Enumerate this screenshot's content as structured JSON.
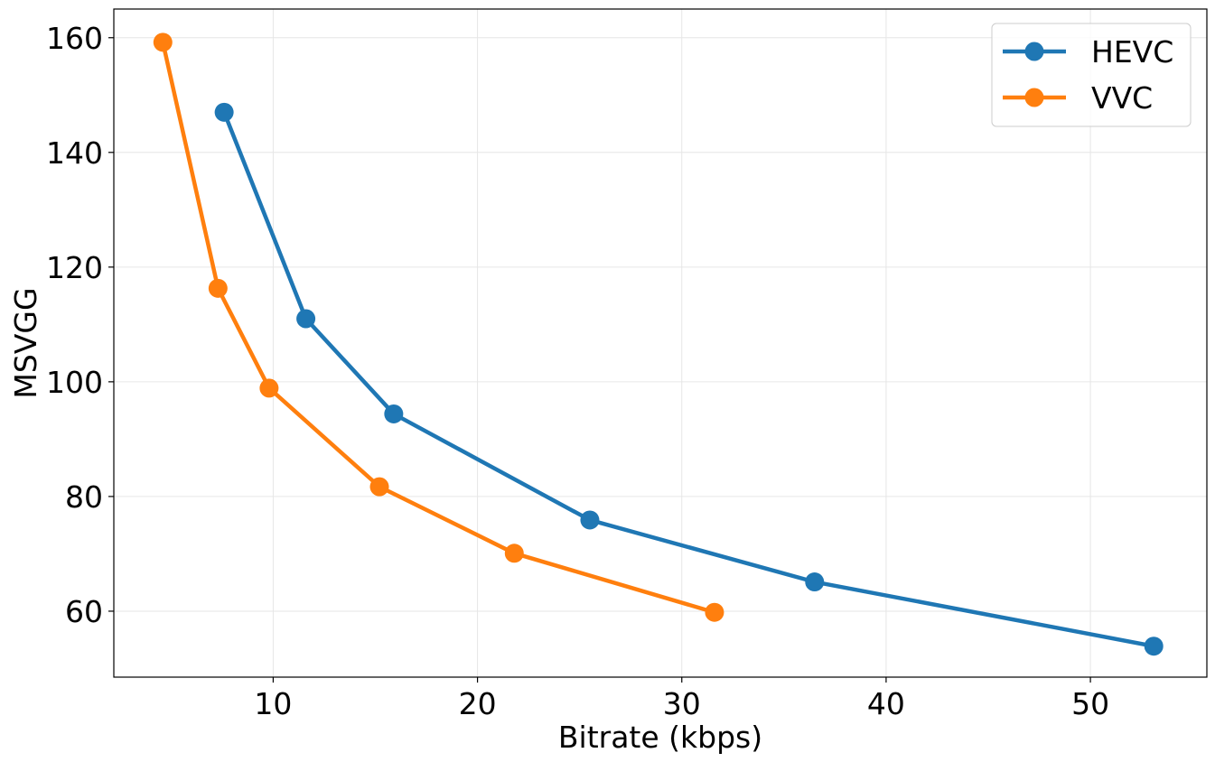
{
  "chart_data": {
    "type": "line",
    "title": "",
    "xlabel": "Bitrate (kbps)",
    "ylabel": "MSVGG",
    "xlim": [
      2.2,
      55.7
    ],
    "ylim": [
      48.5,
      165
    ],
    "xticks": [
      10,
      20,
      30,
      40,
      50
    ],
    "yticks": [
      60,
      80,
      100,
      120,
      140,
      160
    ],
    "grid": true,
    "legend_position": "top-right",
    "series": [
      {
        "name": "HEVC",
        "color": "#1f77b4",
        "x": [
          7.6,
          11.6,
          15.9,
          25.5,
          36.5,
          53.1
        ],
        "y": [
          147.0,
          111.0,
          94.4,
          75.9,
          65.1,
          53.9
        ]
      },
      {
        "name": "VVC",
        "color": "#ff7f0e",
        "x": [
          4.6,
          7.3,
          9.8,
          15.2,
          21.8,
          31.6
        ],
        "y": [
          159.2,
          116.3,
          98.9,
          81.7,
          70.1,
          59.8
        ]
      }
    ]
  }
}
